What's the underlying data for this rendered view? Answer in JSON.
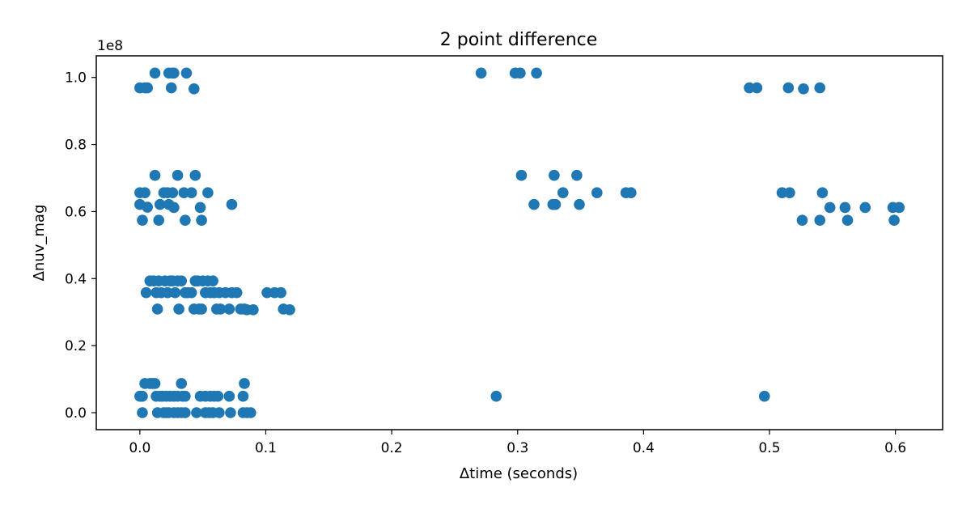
{
  "chart_data": {
    "type": "scatter",
    "title": "2 point difference",
    "xlabel": "Δtime (seconds)",
    "ylabel": "Δnuv_mag",
    "y_offset_label": "1e8",
    "xlim": [
      -0.0346,
      0.6375
    ],
    "ylim": [
      -0.0507,
      1.0645
    ],
    "x_ticks": [
      0.0,
      0.1,
      0.2,
      0.3,
      0.4,
      0.5,
      0.6
    ],
    "x_tick_labels": [
      "0.0",
      "0.1",
      "0.2",
      "0.3",
      "0.4",
      "0.5",
      "0.6"
    ],
    "y_ticks": [
      0.0,
      0.2,
      0.4,
      0.6,
      0.8,
      1.0
    ],
    "y_tick_labels": [
      "0.0",
      "0.2",
      "0.4",
      "0.6",
      "0.8",
      "1.0"
    ],
    "grid": false,
    "series": [
      {
        "color": "#1f77b4",
        "points": [
          [
            0.0,
            0.969
          ],
          [
            0.004,
            0.969
          ],
          [
            0.006,
            0.969
          ],
          [
            0.012,
            1.013
          ],
          [
            0.023,
            1.013
          ],
          [
            0.026,
            1.013
          ],
          [
            0.027,
            1.013
          ],
          [
            0.025,
            0.969
          ],
          [
            0.037,
            1.013
          ],
          [
            0.043,
            0.966
          ],
          [
            0.0,
            0.656
          ],
          [
            0.004,
            0.656
          ],
          [
            0.0,
            0.621
          ],
          [
            0.006,
            0.613
          ],
          [
            0.002,
            0.574
          ],
          [
            0.012,
            0.708
          ],
          [
            0.016,
            0.621
          ],
          [
            0.019,
            0.656
          ],
          [
            0.022,
            0.656
          ],
          [
            0.023,
            0.621
          ],
          [
            0.026,
            0.656
          ],
          [
            0.027,
            0.612
          ],
          [
            0.015,
            0.574
          ],
          [
            0.03,
            0.708
          ],
          [
            0.035,
            0.656
          ],
          [
            0.036,
            0.574
          ],
          [
            0.041,
            0.656
          ],
          [
            0.044,
            0.708
          ],
          [
            0.048,
            0.612
          ],
          [
            0.049,
            0.574
          ],
          [
            0.054,
            0.656
          ],
          [
            0.073,
            0.621
          ],
          [
            0.005,
            0.358
          ],
          [
            0.008,
            0.393
          ],
          [
            0.011,
            0.393
          ],
          [
            0.013,
            0.358
          ],
          [
            0.014,
            0.309
          ],
          [
            0.015,
            0.393
          ],
          [
            0.017,
            0.358
          ],
          [
            0.02,
            0.393
          ],
          [
            0.022,
            0.358
          ],
          [
            0.024,
            0.393
          ],
          [
            0.026,
            0.393
          ],
          [
            0.028,
            0.358
          ],
          [
            0.03,
            0.393
          ],
          [
            0.031,
            0.309
          ],
          [
            0.033,
            0.393
          ],
          [
            0.036,
            0.358
          ],
          [
            0.038,
            0.358
          ],
          [
            0.041,
            0.358
          ],
          [
            0.043,
            0.309
          ],
          [
            0.044,
            0.393
          ],
          [
            0.046,
            0.393
          ],
          [
            0.047,
            0.309
          ],
          [
            0.049,
            0.309
          ],
          [
            0.05,
            0.393
          ],
          [
            0.052,
            0.358
          ],
          [
            0.054,
            0.393
          ],
          [
            0.056,
            0.358
          ],
          [
            0.058,
            0.393
          ],
          [
            0.059,
            0.358
          ],
          [
            0.061,
            0.309
          ],
          [
            0.063,
            0.358
          ],
          [
            0.064,
            0.309
          ],
          [
            0.068,
            0.358
          ],
          [
            0.071,
            0.309
          ],
          [
            0.073,
            0.358
          ],
          [
            0.077,
            0.358
          ],
          [
            0.08,
            0.309
          ],
          [
            0.083,
            0.309
          ],
          [
            0.085,
            0.307
          ],
          [
            0.09,
            0.307
          ],
          [
            0.101,
            0.358
          ],
          [
            0.107,
            0.358
          ],
          [
            0.112,
            0.358
          ],
          [
            0.114,
            0.309
          ],
          [
            0.119,
            0.307
          ],
          [
            0.0,
            0.049
          ],
          [
            0.002,
            0.049
          ],
          [
            0.004,
            0.087
          ],
          [
            0.008,
            0.087
          ],
          [
            0.01,
            0.087
          ],
          [
            0.012,
            0.087
          ],
          [
            0.013,
            0.049
          ],
          [
            0.016,
            0.049
          ],
          [
            0.018,
            0.049
          ],
          [
            0.021,
            0.049
          ],
          [
            0.024,
            0.049
          ],
          [
            0.027,
            0.049
          ],
          [
            0.03,
            0.049
          ],
          [
            0.033,
            0.087
          ],
          [
            0.034,
            0.049
          ],
          [
            0.036,
            0.049
          ],
          [
            0.048,
            0.049
          ],
          [
            0.052,
            0.049
          ],
          [
            0.056,
            0.049
          ],
          [
            0.059,
            0.049
          ],
          [
            0.062,
            0.049
          ],
          [
            0.071,
            0.049
          ],
          [
            0.082,
            0.049
          ],
          [
            0.083,
            0.087
          ],
          [
            0.002,
            0.0
          ],
          [
            0.014,
            0.0
          ],
          [
            0.019,
            0.0
          ],
          [
            0.021,
            0.0
          ],
          [
            0.023,
            0.0
          ],
          [
            0.027,
            0.0
          ],
          [
            0.03,
            0.0
          ],
          [
            0.033,
            0.0
          ],
          [
            0.036,
            0.0
          ],
          [
            0.045,
            0.0
          ],
          [
            0.052,
            0.0
          ],
          [
            0.055,
            0.0
          ],
          [
            0.058,
            0.0
          ],
          [
            0.063,
            0.0
          ],
          [
            0.072,
            0.0
          ],
          [
            0.082,
            0.0
          ],
          [
            0.085,
            0.0
          ],
          [
            0.088,
            0.0
          ],
          [
            0.271,
            1.013
          ],
          [
            0.298,
            1.013
          ],
          [
            0.302,
            1.013
          ],
          [
            0.315,
            1.013
          ],
          [
            0.303,
            0.708
          ],
          [
            0.313,
            0.621
          ],
          [
            0.328,
            0.621
          ],
          [
            0.329,
            0.708
          ],
          [
            0.33,
            0.621
          ],
          [
            0.336,
            0.656
          ],
          [
            0.347,
            0.708
          ],
          [
            0.349,
            0.621
          ],
          [
            0.363,
            0.656
          ],
          [
            0.386,
            0.656
          ],
          [
            0.39,
            0.656
          ],
          [
            0.283,
            0.049
          ],
          [
            0.496,
            0.049
          ],
          [
            0.484,
            0.969
          ],
          [
            0.49,
            0.969
          ],
          [
            0.515,
            0.969
          ],
          [
            0.527,
            0.966
          ],
          [
            0.54,
            0.969
          ],
          [
            0.51,
            0.656
          ],
          [
            0.516,
            0.656
          ],
          [
            0.526,
            0.574
          ],
          [
            0.54,
            0.574
          ],
          [
            0.542,
            0.656
          ],
          [
            0.548,
            0.612
          ],
          [
            0.56,
            0.612
          ],
          [
            0.562,
            0.574
          ],
          [
            0.576,
            0.612
          ],
          [
            0.598,
            0.612
          ],
          [
            0.599,
            0.574
          ],
          [
            0.603,
            0.612
          ]
        ]
      }
    ]
  }
}
